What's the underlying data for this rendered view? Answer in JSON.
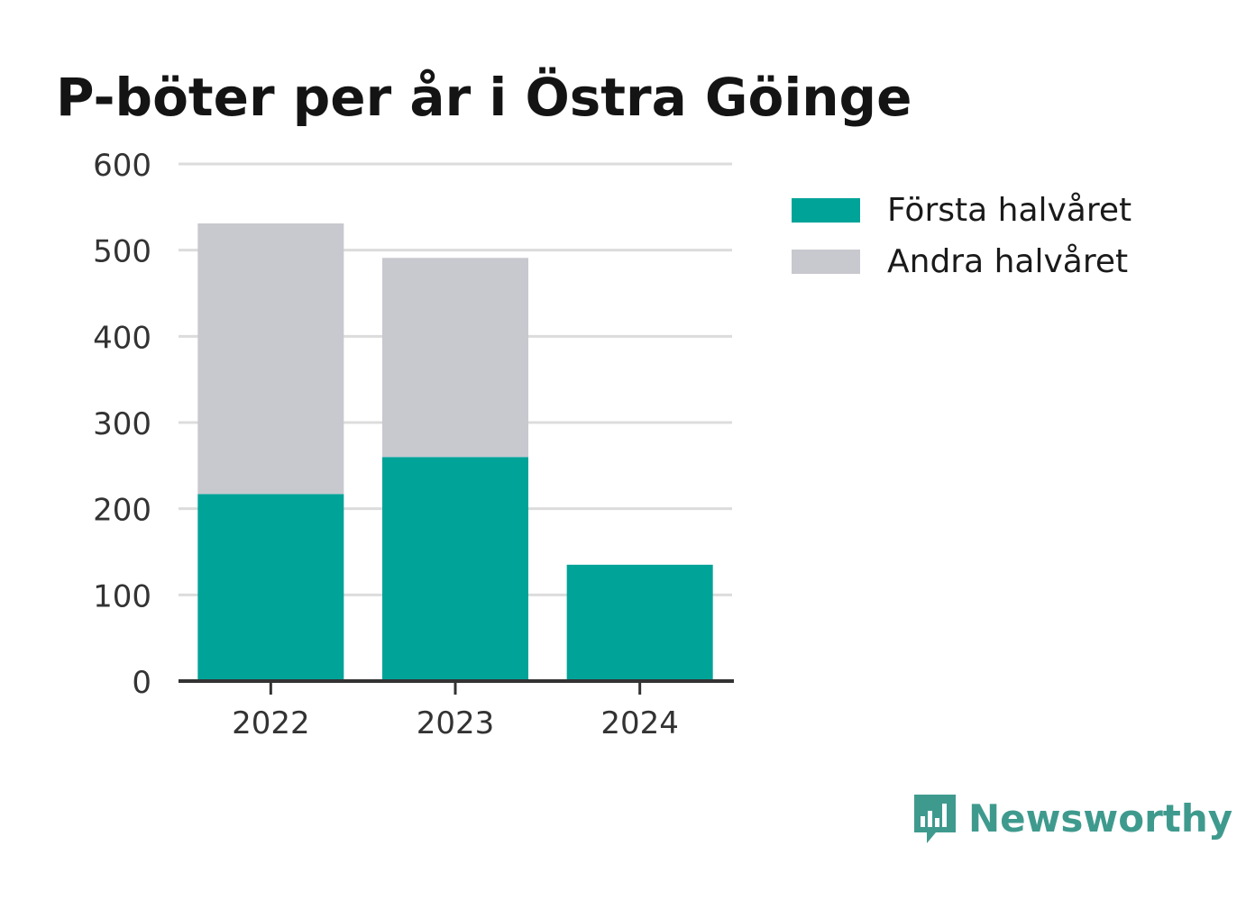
{
  "chart_data": {
    "type": "bar",
    "stacked": true,
    "title": "P-böter per år i Östra Göinge",
    "xlabel": "",
    "ylabel": "",
    "categories": [
      "2022",
      "2023",
      "2024"
    ],
    "series": [
      {
        "name": "Första halvåret",
        "values": [
          217,
          260,
          135
        ],
        "color": "#00a398"
      },
      {
        "name": "Andra halvåret",
        "values": [
          314,
          231,
          0
        ],
        "color": "#c8c8cf"
      }
    ],
    "ylim": [
      0,
      600
    ],
    "yticks": [
      "0",
      "100",
      "200",
      "300",
      "400",
      "500",
      "600"
    ],
    "grid": true,
    "legend_position": "top-right"
  },
  "brand": {
    "name": "Newsworthy",
    "icon": "newsworthy-logo-icon",
    "color": "#3f9a8e"
  }
}
